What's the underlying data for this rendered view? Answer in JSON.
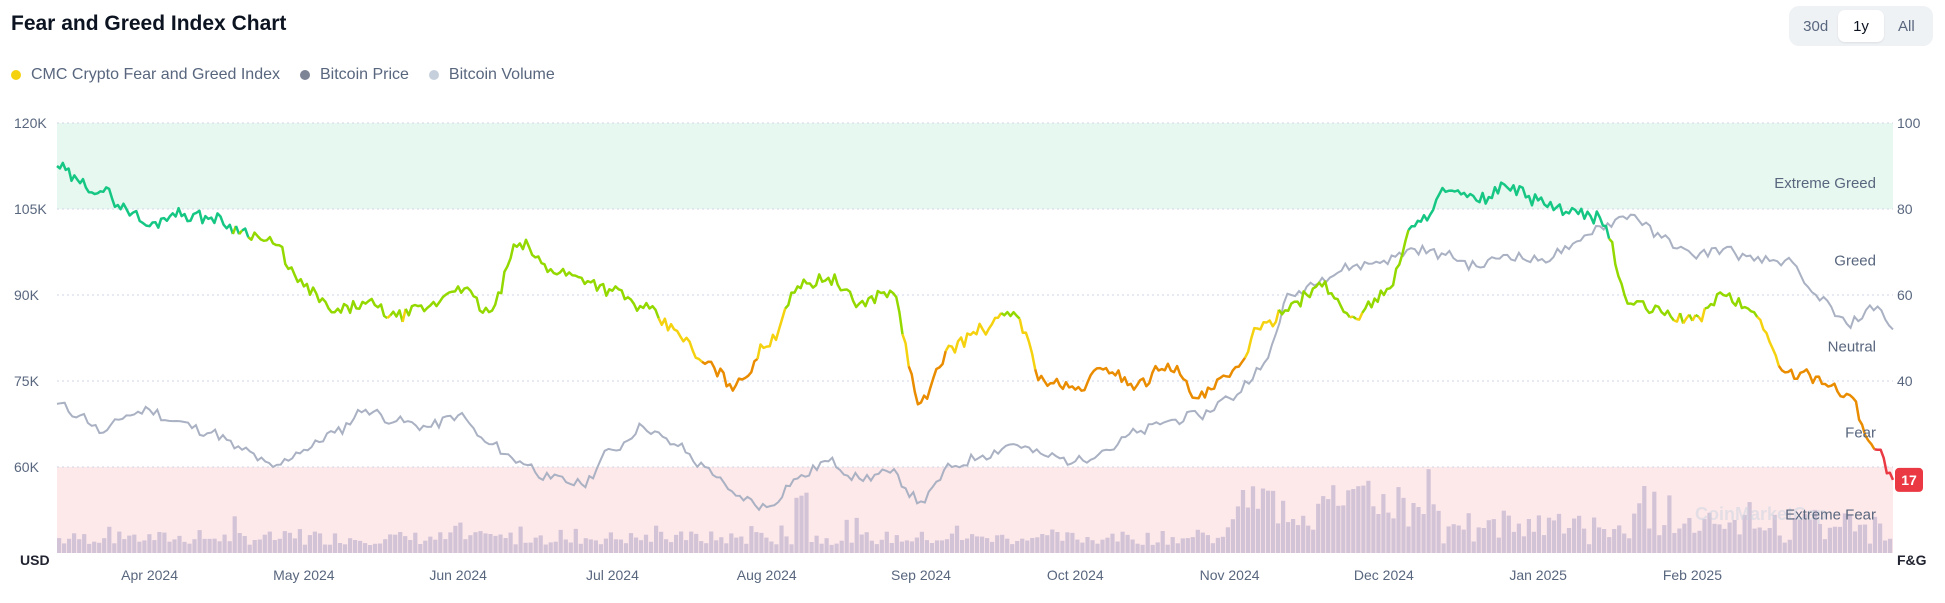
{
  "header": {
    "title": "Fear and Greed Index Chart"
  },
  "range_buttons": [
    {
      "label": "30d",
      "active": false
    },
    {
      "label": "1y",
      "active": true
    },
    {
      "label": "All",
      "active": false
    }
  ],
  "watermark": "CoinMarketCap",
  "colors": {
    "fear_greed": "#f5d20f",
    "bitcoin_price": "#7c8496",
    "bitcoin_volume": "#c6d0dc",
    "greed_zone": "#e7f8f0",
    "fear_zone": "#fde8ea",
    "badge": "#ea3943",
    "volume_bar": "#d3c3d6",
    "grid": "#cfd6e4"
  },
  "chart_data": {
    "type": "line",
    "title": "Fear and Greed Index Chart",
    "legend_position": "top-left",
    "x_ticks": [
      "Apr 2024",
      "May 2024",
      "Jun 2024",
      "Jul 2024",
      "Aug 2024",
      "Sep 2024",
      "Oct 2024",
      "Nov 2024",
      "Dec 2024",
      "Jan 2025",
      "Feb 2025"
    ],
    "x_range_months": [
      0,
      11.9
    ],
    "left_axis": {
      "unit": "USD",
      "range": [
        45000,
        120000
      ],
      "ticks": [
        "120K",
        "105K",
        "90K",
        "75K",
        "60K"
      ],
      "tick_values": [
        120000,
        105000,
        90000,
        75000,
        60000
      ]
    },
    "right_axis": {
      "unit": "F&G",
      "range": [
        0,
        100
      ],
      "ticks": [
        "100",
        "80",
        "60",
        "40"
      ],
      "tick_values": [
        100,
        80,
        60,
        40
      ]
    },
    "zones": [
      {
        "label": "Extreme Greed",
        "range": [
          80,
          100
        ]
      },
      {
        "label": "Greed",
        "value": 68
      },
      {
        "label": "Neutral",
        "value": 48
      },
      {
        "label": "Fear",
        "value": 28
      },
      {
        "label": "Extreme Fear",
        "range": [
          0,
          20
        ]
      }
    ],
    "current_value": "17",
    "series": [
      {
        "name": "CMC Crypto Fear and Greed Index",
        "axis": "right",
        "x": [
          0,
          0.15,
          0.3,
          0.45,
          0.6,
          0.75,
          1.0,
          1.2,
          1.4,
          1.6,
          1.8,
          2.0,
          2.2,
          2.4,
          2.6,
          2.8,
          3.0,
          3.2,
          3.4,
          3.6,
          3.8,
          4.0,
          4.2,
          4.4,
          4.6,
          4.8,
          5.0,
          5.2,
          5.4,
          5.6,
          5.8,
          6.0,
          6.2,
          6.4,
          6.6,
          6.8,
          7.0,
          7.2,
          7.4,
          7.6,
          7.8,
          8.0,
          8.2,
          8.4,
          8.6,
          8.8,
          9.0,
          9.2,
          9.4,
          9.6,
          9.8,
          10.0,
          10.2,
          10.4,
          10.6,
          10.8,
          11.0,
          11.2,
          11.4,
          11.6,
          11.8,
          11.9
        ],
        "values": [
          90,
          86,
          84,
          80,
          76,
          79,
          78,
          75,
          72,
          62,
          56,
          58,
          55,
          57,
          62,
          56,
          72,
          66,
          64,
          61,
          57,
          52,
          44,
          39,
          48,
          62,
          64,
          58,
          61,
          35,
          48,
          52,
          56,
          40,
          38,
          43,
          39,
          44,
          36,
          41,
          52,
          58,
          62,
          55,
          60,
          76,
          84,
          82,
          85,
          82,
          79,
          78,
          58,
          56,
          54,
          60,
          56,
          42,
          41,
          37,
          24,
          17
        ]
      },
      {
        "name": "Bitcoin Price",
        "axis": "left",
        "x": [
          0,
          0.15,
          0.3,
          0.45,
          0.6,
          0.75,
          1.0,
          1.2,
          1.4,
          1.6,
          1.8,
          2.0,
          2.2,
          2.4,
          2.6,
          2.8,
          3.0,
          3.2,
          3.4,
          3.6,
          3.8,
          4.0,
          4.2,
          4.4,
          4.6,
          4.8,
          5.0,
          5.2,
          5.4,
          5.6,
          5.8,
          6.0,
          6.2,
          6.4,
          6.6,
          6.8,
          7.0,
          7.2,
          7.4,
          7.6,
          7.8,
          8.0,
          8.2,
          8.4,
          8.6,
          8.8,
          9.0,
          9.2,
          9.4,
          9.6,
          9.8,
          10.0,
          10.2,
          10.4,
          10.6,
          10.8,
          11.0,
          11.2,
          11.4,
          11.6,
          11.8,
          11.9
        ],
        "values": [
          71000,
          69000,
          66000,
          69000,
          70000,
          68000,
          66000,
          63000,
          60000,
          63000,
          66000,
          70000,
          68000,
          67000,
          69000,
          64000,
          61000,
          58000,
          57000,
          63000,
          67000,
          64000,
          60000,
          55000,
          53000,
          58000,
          61000,
          58000,
          59000,
          54000,
          60000,
          62000,
          64000,
          62000,
          61000,
          63000,
          66000,
          68000,
          69000,
          72000,
          77000,
          90000,
          93000,
          95000,
          96000,
          98000,
          97000,
          95000,
          97000,
          96000,
          98000,
          102000,
          104000,
          100000,
          97000,
          98000,
          96000,
          96000,
          90000,
          85000,
          88000,
          84000
        ]
      },
      {
        "name": "Bitcoin Volume",
        "axis": "volume"
      }
    ]
  }
}
